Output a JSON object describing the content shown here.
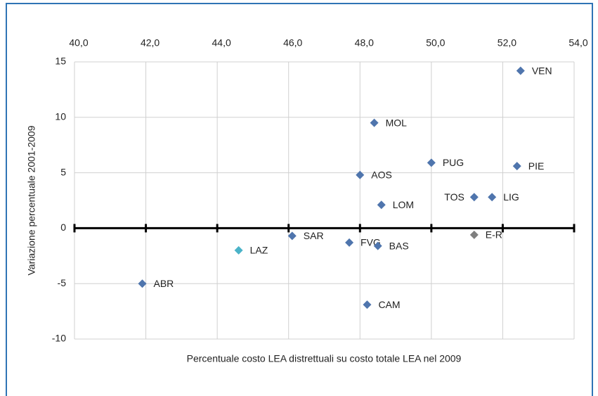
{
  "chart_data": {
    "type": "scatter",
    "x_label": "Percentuale costo LEA distrettuali su costo totale LEA nel 2009",
    "y_label": "Variazione percentuale 2001-2009",
    "labels": [
      "ABR",
      "LAZ",
      "SAR",
      "FVG",
      "BAS",
      "CAM",
      "AOS",
      "LOM",
      "MOL",
      "PUG",
      "TOS",
      "LIG",
      "E-R",
      "PIE",
      "VEN"
    ],
    "x": [
      41.9,
      44.6,
      46.1,
      47.7,
      48.5,
      48.2,
      48.0,
      48.6,
      48.4,
      50.0,
      51.2,
      51.7,
      51.2,
      52.4,
      52.5
    ],
    "values": [
      -5.0,
      -2.0,
      -0.7,
      -1.3,
      -1.6,
      -6.9,
      4.8,
      2.1,
      9.5,
      5.9,
      2.8,
      2.8,
      -0.6,
      5.6,
      14.2
    ],
    "point_colors": [
      "#4f75ad",
      "#4bb3c8",
      "#4f75ad",
      "#4f75ad",
      "#4f75ad",
      "#4f75ad",
      "#4f75ad",
      "#4f75ad",
      "#4f75ad",
      "#4f75ad",
      "#4f75ad",
      "#4f75ad",
      "#7f7f7f",
      "#4f75ad",
      "#4f75ad"
    ],
    "xlim": [
      40,
      54
    ],
    "xticks": [
      {
        "value": 40,
        "label": "40,0"
      },
      {
        "value": 42,
        "label": "42,0"
      },
      {
        "value": 44,
        "label": "44,0"
      },
      {
        "value": 46,
        "label": "46,0"
      },
      {
        "value": 48,
        "label": "48,0"
      },
      {
        "value": 50,
        "label": "50,0"
      },
      {
        "value": 52,
        "label": "52,0"
      },
      {
        "value": 54,
        "label": "54,0"
      }
    ],
    "ylim": [
      -10,
      15
    ],
    "yticks": [
      15,
      10,
      5,
      0,
      -5,
      -10
    ],
    "x_axis_at": 0,
    "grid": true
  }
}
